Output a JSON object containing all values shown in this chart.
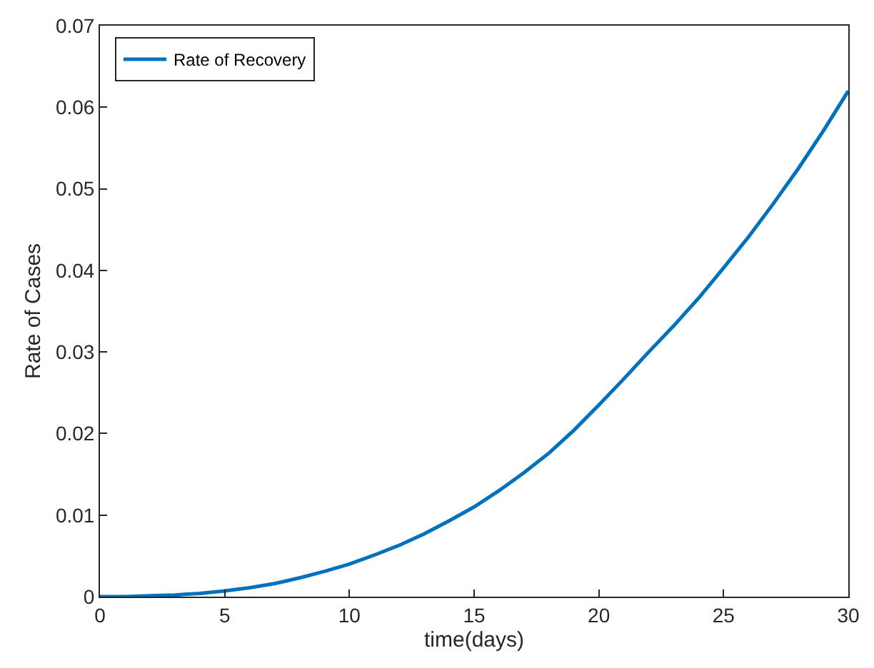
{
  "chart_data": {
    "type": "line",
    "xlabel": "time(days)",
    "ylabel": "Rate of Cases",
    "x": [
      0,
      1,
      2,
      3,
      4,
      5,
      6,
      7,
      8,
      9,
      10,
      11,
      12,
      13,
      14,
      15,
      16,
      17,
      18,
      19,
      20,
      21,
      22,
      23,
      24,
      25,
      26,
      27,
      28,
      29,
      30
    ],
    "series": [
      {
        "name": "Rate of Recovery",
        "color": "#0072bd",
        "values": [
          0,
          0,
          0.0001,
          0.0002,
          0.0004,
          0.0007,
          0.0011,
          0.0016,
          0.0023,
          0.0031,
          0.004,
          0.0051,
          0.0063,
          0.0077,
          0.0093,
          0.011,
          0.013,
          0.0152,
          0.0176,
          0.0204,
          0.0235,
          0.0267,
          0.03,
          0.0332,
          0.0366,
          0.0403,
          0.0441,
          0.0482,
          0.0525,
          0.0571,
          0.062
        ]
      }
    ],
    "xlim": [
      0,
      30
    ],
    "xticks": [
      0,
      5,
      10,
      15,
      20,
      25,
      30
    ],
    "ylim": [
      0,
      0.07
    ],
    "yticks": [
      0,
      0.01,
      0.02,
      0.03,
      0.04,
      0.05,
      0.06,
      0.07
    ],
    "legend": "top left",
    "marker": "none",
    "line_style": "solid"
  }
}
